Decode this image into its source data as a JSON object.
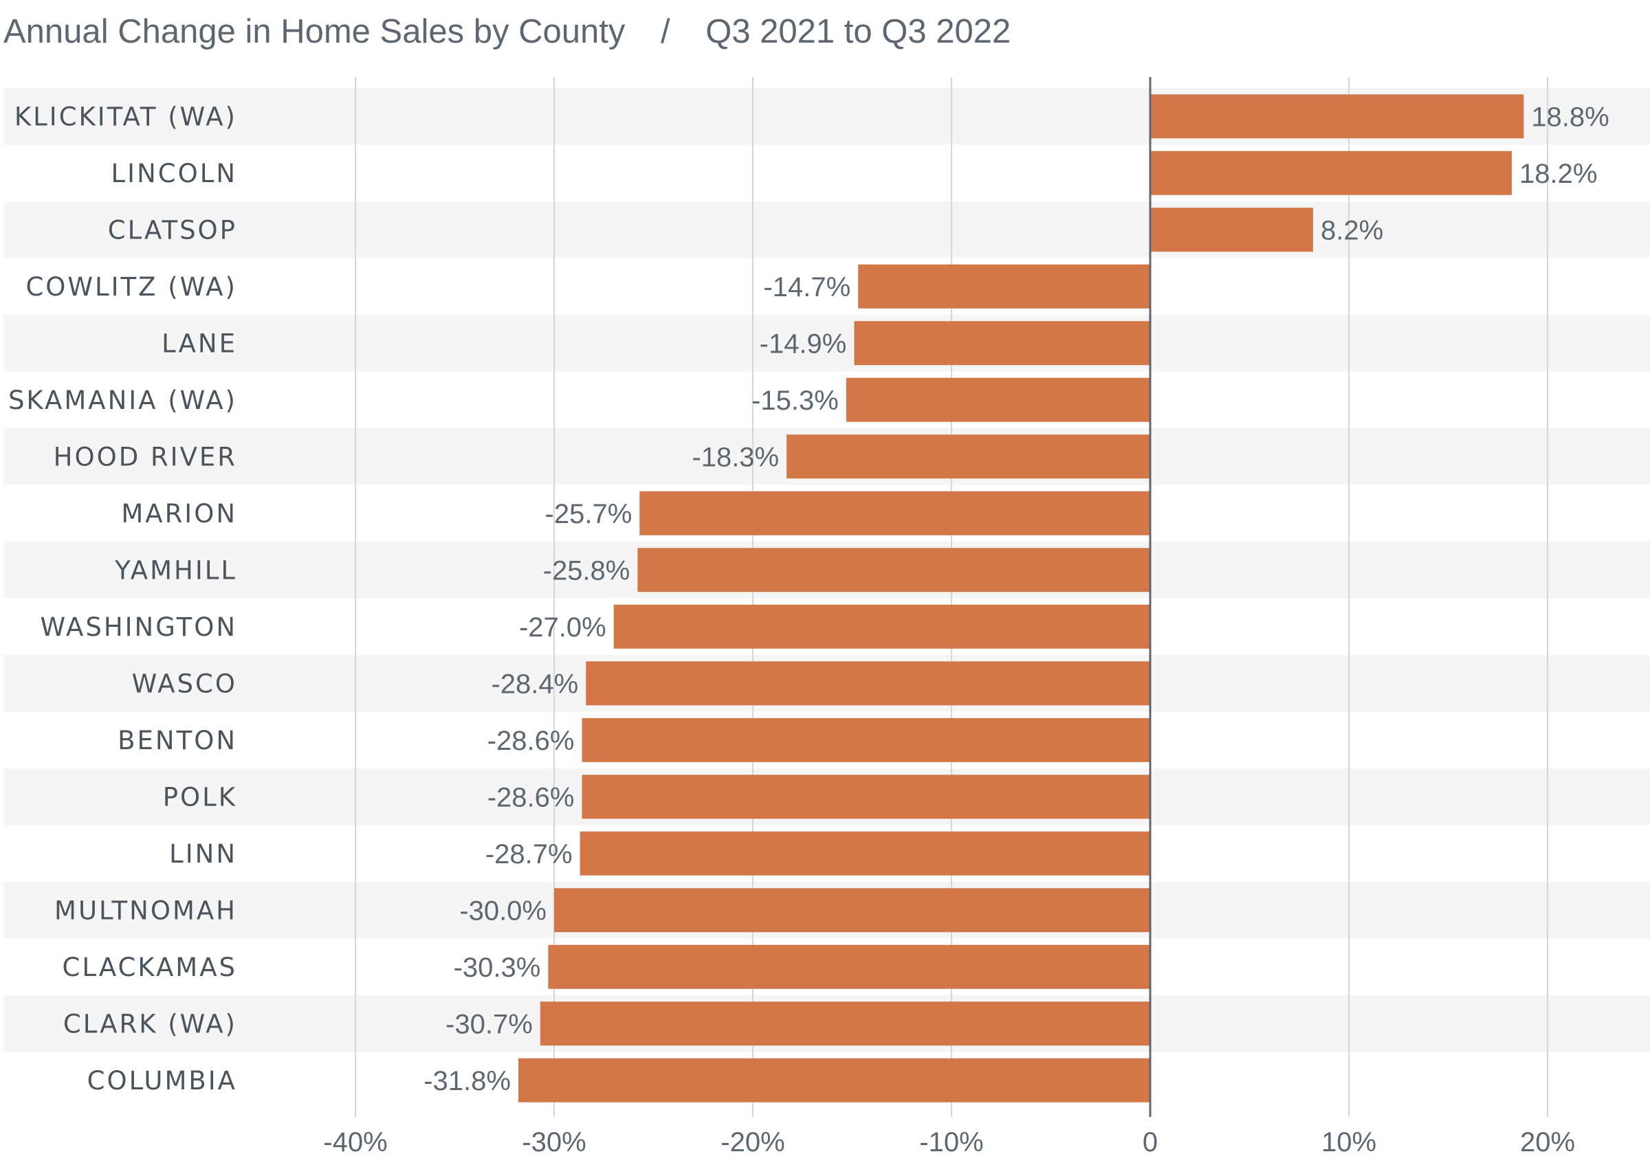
{
  "chart_data": {
    "type": "bar",
    "orientation": "horizontal",
    "title": "Annual Change in Home Sales by County",
    "title_separator": "/",
    "subtitle": "Q3 2021 to Q3 2022",
    "categories": [
      "KLICKITAT (WA)",
      "LINCOLN",
      "CLATSOP",
      "COWLITZ (WA)",
      "LANE",
      "SKAMANIA (WA)",
      "HOOD RIVER",
      "MARION",
      "YAMHILL",
      "WASHINGTON",
      "WASCO",
      "BENTON",
      "POLK",
      "LINN",
      "MULTNOMAH",
      "CLACKAMAS",
      "CLARK (WA)",
      "COLUMBIA"
    ],
    "values": [
      18.8,
      18.2,
      8.2,
      -14.7,
      -14.9,
      -15.3,
      -18.3,
      -25.7,
      -25.8,
      -27.0,
      -28.4,
      -28.6,
      -28.6,
      -28.7,
      -30.0,
      -30.3,
      -30.7,
      -31.8
    ],
    "value_labels": [
      "18.8%",
      "18.2%",
      "8.2%",
      "-14.7%",
      "-14.9%",
      "-15.3%",
      "-18.3%",
      "-25.7%",
      "-25.8%",
      "-27.0%",
      "-28.4%",
      "-28.6%",
      "-28.6%",
      "-28.7%",
      "-30.0%",
      "-30.3%",
      "-30.7%",
      "-31.8%"
    ],
    "xlim": [
      -40,
      25
    ],
    "xticks": [
      -40,
      -30,
      -20,
      -10,
      0,
      10,
      20
    ],
    "xtick_labels": [
      "-40%",
      "-30%",
      "-20%",
      "-10%",
      "0",
      "10%",
      "20%"
    ],
    "xlabel": "",
    "ylabel": "",
    "grid": true,
    "colors": {
      "bar": "#d47748",
      "stripe": "#f5f5f5",
      "grid": "#d6d6d6",
      "zero_line": "#5e6770"
    }
  }
}
